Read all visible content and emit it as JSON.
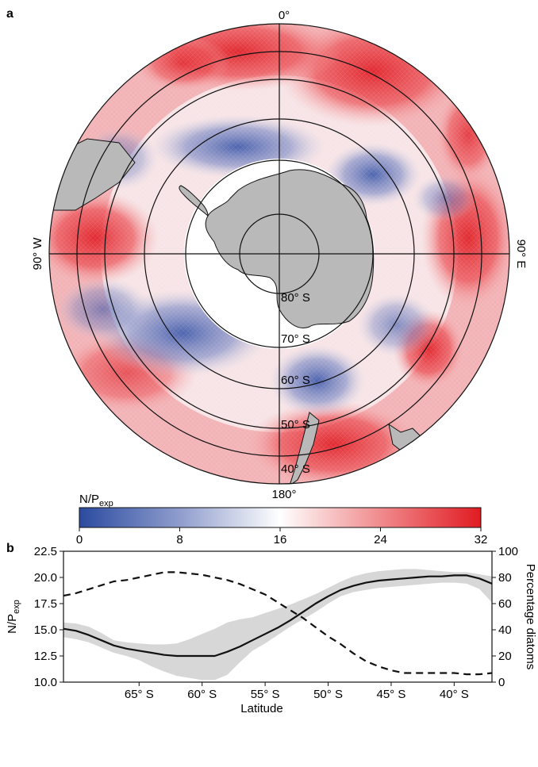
{
  "panel_a": {
    "label": "a",
    "meridian_labels": {
      "top": "0°",
      "right": "90° E",
      "bottom": "180°",
      "left": "90° W"
    },
    "latitude_labels": [
      "80° S",
      "70° S",
      "60° S",
      "50° S",
      "40° S"
    ],
    "colorbar": {
      "title": "N/P",
      "title_sub": "exp",
      "ticks": [
        "0",
        "8",
        "16",
        "24",
        "32"
      ],
      "colors": {
        "low": "#2b4ba0",
        "mid": "#ffffff",
        "high": "#e01b22"
      }
    },
    "land_color": "#b9b9b9"
  },
  "chart_data": {
    "label": "b",
    "type": "line",
    "xlabel": "Latitude",
    "ylabel": "N/P",
    "ylabel_sub": "exp",
    "y2label": "Percentage diatoms",
    "xlim": [
      -71,
      -37
    ],
    "ylim": [
      10.0,
      22.5
    ],
    "y2lim": [
      0,
      100
    ],
    "x_ticks": [
      -65,
      -60,
      -55,
      -50,
      -45,
      -40
    ],
    "x_tick_labels": [
      "65° S",
      "60° S",
      "55° S",
      "50° S",
      "45° S",
      "40° S"
    ],
    "y_ticks": [
      "10.0",
      "12.5",
      "15.0",
      "17.5",
      "20.0",
      "22.5"
    ],
    "y2_ticks": [
      "0",
      "20",
      "40",
      "60",
      "80",
      "100"
    ],
    "series": [
      {
        "style": "solid",
        "color": "#111111",
        "x": [
          -71,
          -70,
          -69,
          -68,
          -67,
          -66,
          -65,
          -64,
          -63,
          -62,
          -61,
          -60,
          -59,
          -58,
          -57,
          -56,
          -55,
          -54,
          -53,
          -52,
          -51,
          -50,
          -49,
          -48,
          -47,
          -46,
          -45,
          -44,
          -43,
          -42,
          -41,
          -40,
          -39,
          -38,
          -37
        ],
        "y": [
          15.1,
          14.9,
          14.5,
          14.0,
          13.5,
          13.2,
          13.0,
          12.8,
          12.6,
          12.5,
          12.5,
          12.5,
          12.5,
          12.9,
          13.4,
          14.0,
          14.6,
          15.2,
          15.9,
          16.7,
          17.5,
          18.2,
          18.8,
          19.2,
          19.5,
          19.7,
          19.8,
          19.9,
          20.0,
          20.1,
          20.1,
          20.2,
          20.2,
          19.9,
          19.4
        ]
      },
      {
        "style": "dashed",
        "color": "#111111",
        "axis": "right",
        "x": [
          -71,
          -70,
          -69,
          -68,
          -67,
          -66,
          -65,
          -64,
          -63,
          -62,
          -61,
          -60,
          -59,
          -58,
          -57,
          -56,
          -55,
          -54,
          -53,
          -52,
          -51,
          -50,
          -49,
          -48,
          -47,
          -46,
          -45,
          -44,
          -43,
          -42,
          -41,
          -40,
          -39,
          -38,
          -37
        ],
        "y": [
          66,
          68,
          71,
          74,
          77,
          78,
          80,
          82,
          84,
          84,
          83,
          82,
          80,
          78,
          75,
          71,
          67,
          61,
          55,
          49,
          42,
          35,
          29,
          22,
          16,
          12,
          9,
          7,
          7,
          7,
          7,
          7,
          6,
          6,
          7
        ]
      }
    ],
    "band": {
      "color": "#d7d7d7",
      "x": [
        -71,
        -70,
        -69,
        -68,
        -67,
        -66,
        -65,
        -64,
        -63,
        -62,
        -61,
        -60,
        -59,
        -58,
        -57,
        -56,
        -55,
        -54,
        -53,
        -52,
        -51,
        -50,
        -49,
        -48,
        -47,
        -46,
        -45,
        -44,
        -43,
        -42,
        -41,
        -40,
        -39,
        -38,
        -37
      ],
      "upper": [
        15.7,
        15.6,
        15.3,
        14.7,
        14.0,
        13.8,
        13.7,
        13.6,
        13.6,
        13.7,
        14.1,
        14.6,
        15.1,
        15.7,
        16.0,
        16.2,
        16.6,
        17.0,
        17.4,
        17.9,
        18.4,
        19.0,
        19.6,
        20.1,
        20.4,
        20.6,
        20.7,
        20.8,
        20.8,
        20.7,
        20.6,
        20.5,
        20.5,
        20.3,
        20.1
      ],
      "lower": [
        14.3,
        14.1,
        13.8,
        13.3,
        12.8,
        12.5,
        12.1,
        11.5,
        11.0,
        10.6,
        10.4,
        10.2,
        10.2,
        10.7,
        11.9,
        13.0,
        13.7,
        14.5,
        15.3,
        16.0,
        16.7,
        17.5,
        18.2,
        18.6,
        18.8,
        19.0,
        19.1,
        19.2,
        19.3,
        19.4,
        19.5,
        19.5,
        19.4,
        18.9,
        17.6
      ]
    }
  }
}
